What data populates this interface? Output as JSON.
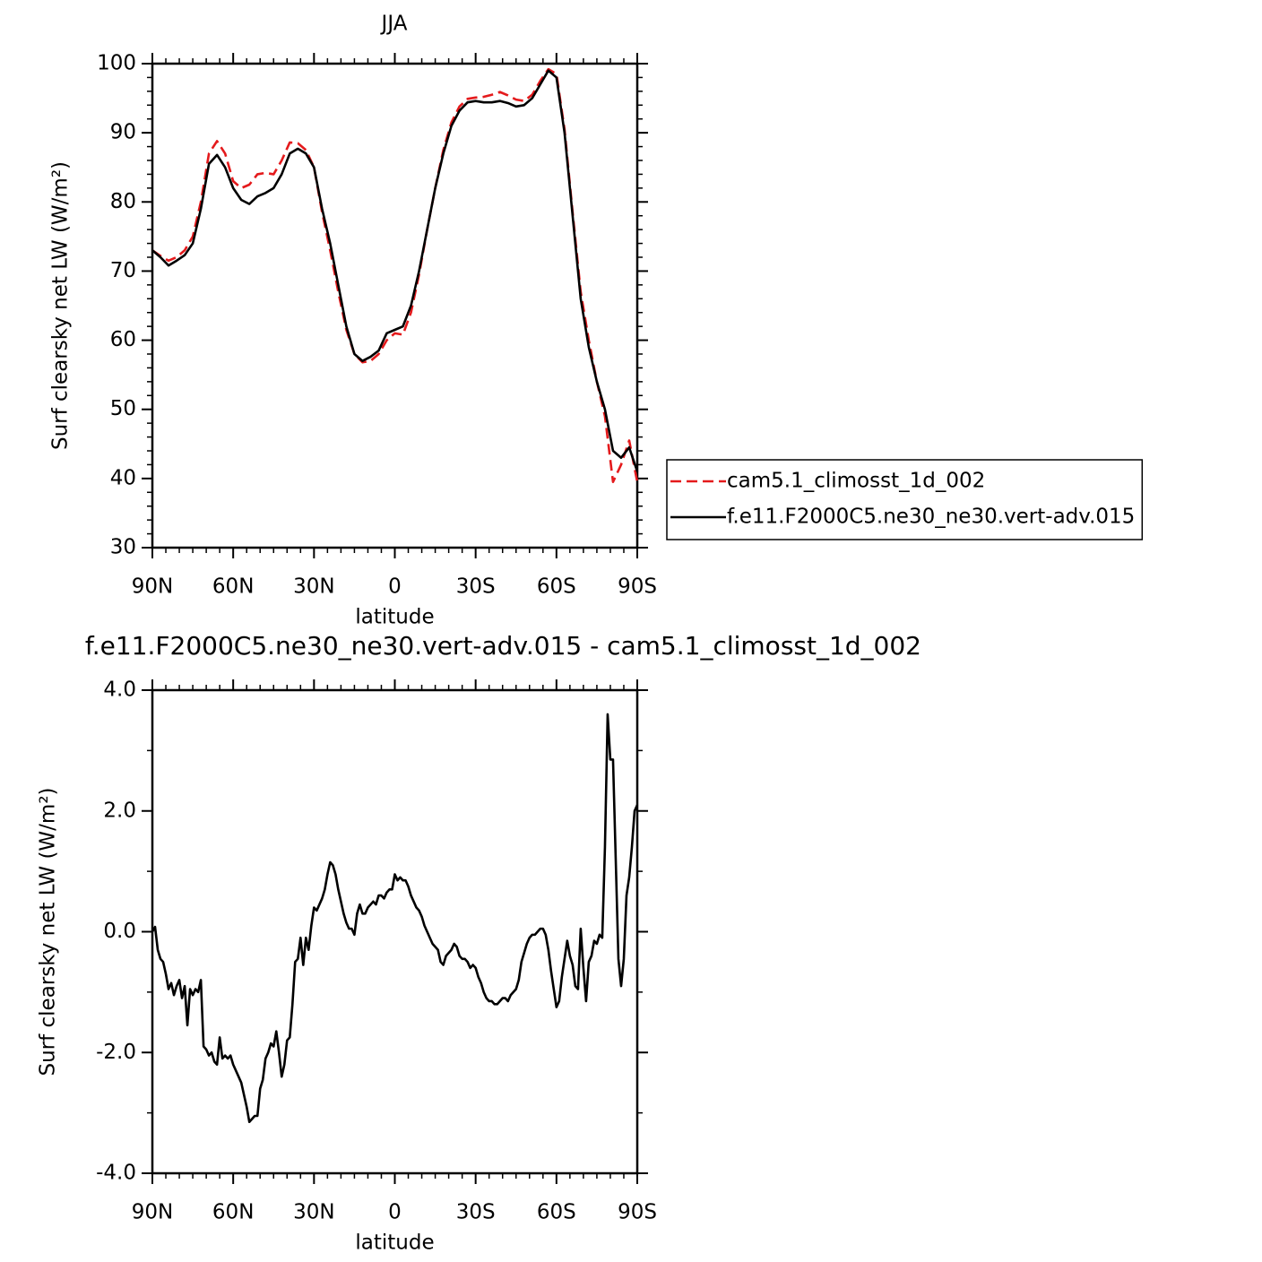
{
  "chart_data": [
    {
      "type": "line",
      "title": "JJA",
      "xlabel": "latitude",
      "ylabel": "Surf clearsky net LW (W/m²)",
      "x": [
        90,
        87,
        84,
        81,
        78,
        75,
        72,
        69,
        66,
        63,
        60,
        57,
        54,
        51,
        48,
        45,
        42,
        39,
        36,
        33,
        30,
        27,
        24,
        21,
        18,
        15,
        12,
        9,
        6,
        3,
        0,
        -3,
        -6,
        -9,
        -12,
        -15,
        -18,
        -21,
        -24,
        -27,
        -30,
        -33,
        -36,
        -39,
        -42,
        -45,
        -48,
        -51,
        -54,
        -57,
        -60,
        -63,
        -66,
        -69,
        -72,
        -75,
        -78,
        -81,
        -84,
        -87,
        -90
      ],
      "series": [
        {
          "name": "cam5.1_climosst_1d_002",
          "color": "#e41a1c",
          "dash": "dashed",
          "values": [
            73,
            72.2,
            71.5,
            72,
            73,
            75,
            80,
            87,
            88.8,
            87,
            83,
            82,
            82.5,
            84,
            84.2,
            84,
            86,
            88.6,
            88.5,
            87.5,
            85,
            78.5,
            73,
            67,
            61.5,
            58,
            56.8,
            57,
            58,
            60,
            61,
            60.8,
            64,
            69.5,
            76,
            82,
            87.5,
            91.5,
            93.8,
            94.9,
            95.1,
            95.2,
            95.5,
            95.9,
            95.4,
            94.8,
            94.6,
            95.5,
            97.5,
            99.2,
            98.5,
            90.5,
            78.5,
            67,
            60,
            54,
            49,
            39.5,
            42,
            45.5,
            39.5
          ]
        },
        {
          "name": "f.e11.F2000C5.ne30_ne30.vert-adv.015",
          "color": "#000000",
          "dash": "solid",
          "values": [
            73,
            72,
            70.8,
            71.5,
            72.3,
            74,
            79,
            85.5,
            86.8,
            85,
            82,
            80.3,
            79.7,
            80.8,
            81.3,
            82,
            84,
            87,
            87.7,
            87,
            85,
            79,
            74,
            68,
            62,
            58,
            57,
            57.6,
            58.5,
            61,
            61.5,
            62,
            65,
            70,
            76,
            82,
            87,
            91,
            93.2,
            94.4,
            94.6,
            94.4,
            94.4,
            94.6,
            94.3,
            93.8,
            94,
            95,
            97,
            99,
            98,
            90,
            78,
            66,
            59,
            54,
            50,
            44,
            43,
            44.5,
            41
          ]
        }
      ],
      "xlim": [
        90,
        -90
      ],
      "xticks": [
        {
          "value": 90,
          "label": "90N"
        },
        {
          "value": 60,
          "label": "60N"
        },
        {
          "value": 30,
          "label": "30N"
        },
        0,
        {
          "value": -30,
          "label": "30S"
        },
        {
          "value": -60,
          "label": "60S"
        },
        {
          "value": -90,
          "label": "90S"
        }
      ],
      "ylim": [
        30,
        100
      ],
      "yticks": [
        30,
        40,
        50,
        60,
        70,
        80,
        90,
        100
      ],
      "legend": "right"
    },
    {
      "type": "line",
      "title": "f.e11.F2000C5.ne30_ne30.vert-adv.015 - cam5.1_climosst_1d_002",
      "xlabel": "latitude",
      "ylabel": "Surf clearsky net LW (W/m²)",
      "x": [
        90,
        89,
        88,
        87,
        86,
        85,
        84,
        83,
        82,
        81,
        80,
        79,
        78,
        77,
        76,
        75,
        74,
        73,
        72,
        71,
        70,
        69,
        68,
        67,
        66,
        65,
        64,
        63,
        62,
        61,
        60,
        59,
        58,
        57,
        56,
        55,
        54,
        53,
        52,
        51,
        50,
        49,
        48,
        47,
        46,
        45,
        44,
        43,
        42,
        41,
        40,
        39,
        38,
        37,
        36,
        35,
        34,
        33,
        32,
        31,
        30,
        29,
        28,
        27,
        26,
        25,
        24,
        23,
        22,
        21,
        20,
        19,
        18,
        17,
        16,
        15,
        14,
        13,
        12,
        11,
        10,
        9,
        8,
        7,
        6,
        5,
        4,
        3,
        2,
        1,
        0,
        -1,
        -2,
        -3,
        -4,
        -5,
        -6,
        -7,
        -8,
        -9,
        -10,
        -11,
        -12,
        -13,
        -14,
        -15,
        -16,
        -17,
        -18,
        -19,
        -20,
        -21,
        -22,
        -23,
        -24,
        -25,
        -26,
        -27,
        -28,
        -29,
        -30,
        -31,
        -32,
        -33,
        -34,
        -35,
        -36,
        -37,
        -38,
        -39,
        -40,
        -41,
        -42,
        -43,
        -44,
        -45,
        -46,
        -47,
        -48,
        -49,
        -50,
        -51,
        -52,
        -53,
        -54,
        -55,
        -56,
        -57,
        -58,
        -59,
        -60,
        -61,
        -62,
        -63,
        -64,
        -65,
        -66,
        -67,
        -68,
        -69,
        -70,
        -71,
        -72,
        -73,
        -74,
        -75,
        -76,
        -77,
        -78,
        -79,
        -80,
        -81,
        -82,
        -83,
        -84,
        -85,
        -86,
        -87,
        -88,
        -89,
        -90
      ],
      "series": [
        {
          "color": "#000000",
          "dash": "solid",
          "values": [
            0.0,
            0.08,
            -0.3,
            -0.45,
            -0.5,
            -0.7,
            -0.95,
            -0.85,
            -1.05,
            -0.9,
            -0.8,
            -1.1,
            -0.9,
            -1.55,
            -0.95,
            -1.05,
            -0.95,
            -1.0,
            -0.8,
            -1.9,
            -1.95,
            -2.05,
            -2.0,
            -2.15,
            -2.2,
            -1.75,
            -2.1,
            -2.05,
            -2.1,
            -2.05,
            -2.2,
            -2.3,
            -2.4,
            -2.5,
            -2.7,
            -2.9,
            -3.15,
            -3.1,
            -3.05,
            -3.05,
            -2.6,
            -2.45,
            -2.1,
            -2.0,
            -1.85,
            -1.9,
            -1.65,
            -2.0,
            -2.4,
            -2.2,
            -1.8,
            -1.75,
            -1.2,
            -0.5,
            -0.45,
            -0.1,
            -0.55,
            -0.1,
            -0.3,
            0.1,
            0.4,
            0.35,
            0.45,
            0.55,
            0.7,
            0.95,
            1.15,
            1.1,
            0.95,
            0.7,
            0.5,
            0.3,
            0.15,
            0.05,
            0.05,
            -0.05,
            0.3,
            0.45,
            0.3,
            0.3,
            0.4,
            0.45,
            0.5,
            0.45,
            0.6,
            0.6,
            0.55,
            0.65,
            0.7,
            0.7,
            0.95,
            0.85,
            0.9,
            0.85,
            0.85,
            0.75,
            0.6,
            0.5,
            0.4,
            0.35,
            0.25,
            0.1,
            0.0,
            -0.1,
            -0.2,
            -0.25,
            -0.3,
            -0.5,
            -0.55,
            -0.4,
            -0.35,
            -0.3,
            -0.2,
            -0.25,
            -0.4,
            -0.45,
            -0.45,
            -0.5,
            -0.6,
            -0.55,
            -0.6,
            -0.75,
            -0.85,
            -1.0,
            -1.1,
            -1.15,
            -1.15,
            -1.2,
            -1.2,
            -1.15,
            -1.1,
            -1.1,
            -1.15,
            -1.05,
            -1.0,
            -0.95,
            -0.8,
            -0.5,
            -0.35,
            -0.2,
            -0.1,
            -0.05,
            -0.05,
            0.0,
            0.05,
            0.05,
            -0.05,
            -0.3,
            -0.65,
            -0.95,
            -1.25,
            -1.15,
            -0.75,
            -0.45,
            -0.15,
            -0.4,
            -0.55,
            -0.9,
            -0.95,
            0.05,
            -0.6,
            -1.15,
            -0.5,
            -0.4,
            -0.15,
            -0.2,
            -0.05,
            -0.1,
            1.4,
            3.6,
            2.85,
            2.85,
            1.2,
            -0.45,
            -0.9,
            -0.45,
            0.6,
            0.9,
            1.4,
            2.0,
            2.1
          ]
        }
      ],
      "xlim": [
        90,
        -90
      ],
      "xticks": [
        {
          "value": 90,
          "label": "90N"
        },
        {
          "value": 60,
          "label": "60N"
        },
        {
          "value": 30,
          "label": "30N"
        },
        0,
        {
          "value": -30,
          "label": "30S"
        },
        {
          "value": -60,
          "label": "60S"
        },
        {
          "value": -90,
          "label": "90S"
        }
      ],
      "ylim": [
        -4,
        4
      ],
      "yticks": [
        {
          "value": -4,
          "label": "-4.0"
        },
        {
          "value": -2,
          "label": "-2.0"
        },
        {
          "value": 0,
          "label": "0.0"
        },
        {
          "value": 2,
          "label": "2.0"
        },
        {
          "value": 4,
          "label": "4.0"
        }
      ]
    }
  ]
}
